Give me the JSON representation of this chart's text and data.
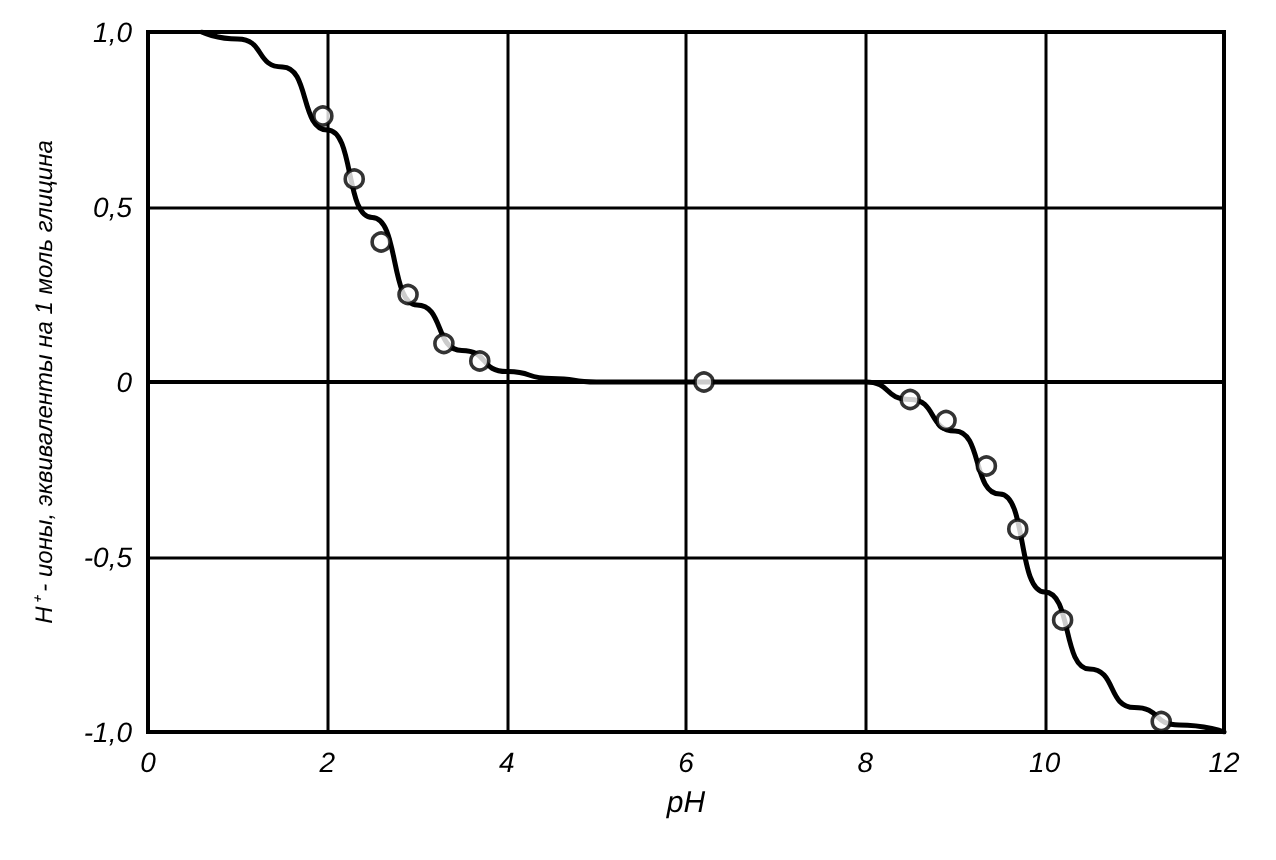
{
  "chart_data": {
    "type": "line",
    "xlabel": "pH",
    "ylabel": "H⁺ - ионы, эквиваленты на 1 моль глицина",
    "xlim": [
      0,
      12
    ],
    "ylim": [
      -1,
      1
    ],
    "xticks": [
      0,
      2,
      4,
      6,
      8,
      10,
      12
    ],
    "yticks": [
      {
        "value": -1,
        "label": "-1,0"
      },
      {
        "value": -0.5,
        "label": "-0,5"
      },
      0,
      {
        "value": 0.5,
        "label": "0,5"
      },
      {
        "value": 1,
        "label": "1,0"
      }
    ],
    "grid": true,
    "series": [
      {
        "color": "#000000",
        "marker": "none",
        "line_style": "solid",
        "x": [
          0.6,
          1,
          1.5,
          2,
          2.5,
          3,
          3.5,
          4,
          4.5,
          5,
          6,
          7,
          8,
          8.5,
          9,
          9.5,
          10,
          10.5,
          11,
          11.5,
          12
        ],
        "values": [
          1.0,
          0.98,
          0.9,
          0.72,
          0.47,
          0.22,
          0.09,
          0.03,
          0.01,
          0,
          0,
          0,
          0,
          -0.05,
          -0.14,
          -0.32,
          -0.6,
          -0.82,
          -0.93,
          -0.98,
          -1.0
        ]
      },
      {
        "type": "scatter",
        "color": "#000000",
        "marker": "circle",
        "x": [
          1.95,
          2.3,
          2.6,
          2.9,
          3.3,
          3.7,
          6.2,
          8.5,
          8.9,
          9.35,
          9.7,
          10.2,
          11.3
        ],
        "values": [
          0.76,
          0.58,
          0.4,
          0.25,
          0.11,
          0.06,
          0,
          -0.05,
          -0.11,
          -0.24,
          -0.42,
          -0.68,
          -0.97
        ]
      }
    ]
  }
}
